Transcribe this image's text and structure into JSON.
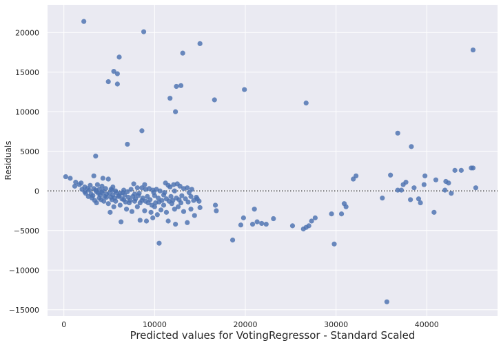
{
  "chart_data": {
    "type": "scatter",
    "title": "",
    "xlabel": "Predicted values for VotingRegressor - Standard Scaled",
    "ylabel": "Residuals",
    "xlim": [
      -1800,
      47800
    ],
    "ylim": [
      -15800,
      23500
    ],
    "x_ticks": [
      {
        "value": 0,
        "label": "0"
      },
      {
        "value": 10000,
        "label": "10000"
      },
      {
        "value": 20000,
        "label": "20000"
      },
      {
        "value": 30000,
        "label": "30000"
      },
      {
        "value": 40000,
        "label": "40000"
      }
    ],
    "y_ticks": [
      {
        "value": -15000,
        "label": "−15000"
      },
      {
        "value": -10000,
        "label": "−10000"
      },
      {
        "value": -5000,
        "label": "−5000"
      },
      {
        "value": 0,
        "label": "0"
      },
      {
        "value": 5000,
        "label": "5000"
      },
      {
        "value": 10000,
        "label": "10000"
      },
      {
        "value": 15000,
        "label": "15000"
      },
      {
        "value": 20000,
        "label": "20000"
      }
    ],
    "grid": true,
    "reference_line": {
      "y": 0,
      "style": "dotted"
    },
    "colors": {
      "background": "#eaeaf2",
      "grid": "#ffffff",
      "marker": "#4c72b0",
      "reference_line": "#444444"
    },
    "points": [
      [
        2200,
        21400
      ],
      [
        8800,
        20100
      ],
      [
        15000,
        18600
      ],
      [
        13100,
        17400
      ],
      [
        6100,
        16900
      ],
      [
        5500,
        15100
      ],
      [
        5900,
        14800
      ],
      [
        5900,
        13500
      ],
      [
        4900,
        13800
      ],
      [
        12900,
        13300
      ],
      [
        12400,
        13200
      ],
      [
        19900,
        12800
      ],
      [
        11700,
        11700
      ],
      [
        16600,
        11500
      ],
      [
        12300,
        10000
      ],
      [
        26700,
        11100
      ],
      [
        8600,
        7600
      ],
      [
        7000,
        5900
      ],
      [
        3500,
        4400
      ],
      [
        45100,
        17800
      ],
      [
        36800,
        7300
      ],
      [
        38300,
        5600
      ],
      [
        200,
        1800
      ],
      [
        700,
        1600
      ],
      [
        1300,
        1100
      ],
      [
        1700,
        800
      ],
      [
        1900,
        1000
      ],
      [
        2300,
        500
      ],
      [
        2600,
        300
      ],
      [
        2900,
        700
      ],
      [
        3300,
        1900
      ],
      [
        3300,
        300
      ],
      [
        3700,
        800
      ],
      [
        3900,
        200
      ],
      [
        4200,
        600
      ],
      [
        4300,
        1600
      ],
      [
        4600,
        300
      ],
      [
        4900,
        1500
      ],
      [
        5200,
        200
      ],
      [
        5400,
        500
      ],
      [
        5700,
        0
      ],
      [
        6200,
        -300
      ],
      [
        6600,
        100
      ],
      [
        7000,
        -100
      ],
      [
        7400,
        200
      ],
      [
        7700,
        900
      ],
      [
        8100,
        400
      ],
      [
        8600,
        400
      ],
      [
        8900,
        800
      ],
      [
        9000,
        200
      ],
      [
        9400,
        300
      ],
      [
        9800,
        100
      ],
      [
        10200,
        200
      ],
      [
        10600,
        0
      ],
      [
        11200,
        1000
      ],
      [
        11500,
        700
      ],
      [
        11700,
        500
      ],
      [
        12100,
        800
      ],
      [
        12500,
        900
      ],
      [
        12800,
        600
      ],
      [
        13200,
        300
      ],
      [
        13600,
        400
      ],
      [
        14100,
        200
      ],
      [
        2400,
        -300
      ],
      [
        2700,
        -700
      ],
      [
        3100,
        -900
      ],
      [
        3400,
        -1200
      ],
      [
        3600,
        -1500
      ],
      [
        3900,
        -900
      ],
      [
        4100,
        -1100
      ],
      [
        4400,
        -1300
      ],
      [
        4700,
        -800
      ],
      [
        4900,
        -1600
      ],
      [
        5100,
        -2700
      ],
      [
        5300,
        -1100
      ],
      [
        5500,
        -2000
      ],
      [
        5700,
        -1300
      ],
      [
        6000,
        -700
      ],
      [
        6200,
        -1800
      ],
      [
        6300,
        -3900
      ],
      [
        6600,
        -1100
      ],
      [
        6900,
        -2300
      ],
      [
        7200,
        -1500
      ],
      [
        7500,
        -2600
      ],
      [
        7800,
        -1300
      ],
      [
        8100,
        -2000
      ],
      [
        8400,
        -3700
      ],
      [
        8600,
        -1200
      ],
      [
        8900,
        -2500
      ],
      [
        9100,
        -3800
      ],
      [
        9300,
        -1500
      ],
      [
        9600,
        -2700
      ],
      [
        9800,
        -3400
      ],
      [
        10000,
        -2000
      ],
      [
        10300,
        -3000
      ],
      [
        10500,
        -1400
      ],
      [
        10700,
        -2400
      ],
      [
        11000,
        -1800
      ],
      [
        11300,
        -2700
      ],
      [
        11500,
        -3800
      ],
      [
        11900,
        -1600
      ],
      [
        12200,
        -2300
      ],
      [
        12300,
        -4200
      ],
      [
        12600,
        -2000
      ],
      [
        12900,
        -1500
      ],
      [
        13200,
        -2600
      ],
      [
        13600,
        -4000
      ],
      [
        14000,
        -2300
      ],
      [
        14400,
        -3100
      ],
      [
        14700,
        -1000
      ],
      [
        15000,
        -2100
      ],
      [
        16700,
        -1800
      ],
      [
        16800,
        -2500
      ],
      [
        10500,
        -6600
      ],
      [
        18600,
        -6200
      ],
      [
        19500,
        -4300
      ],
      [
        19800,
        -3400
      ],
      [
        20800,
        -4200
      ],
      [
        21000,
        -2300
      ],
      [
        21300,
        -3900
      ],
      [
        21800,
        -4100
      ],
      [
        22300,
        -4200
      ],
      [
        23100,
        -3500
      ],
      [
        25200,
        -4400
      ],
      [
        26400,
        -4800
      ],
      [
        26700,
        -4600
      ],
      [
        27000,
        -4400
      ],
      [
        27300,
        -3800
      ],
      [
        27700,
        -3400
      ],
      [
        29500,
        -2900
      ],
      [
        29800,
        -6700
      ],
      [
        30600,
        -2900
      ],
      [
        30900,
        -1600
      ],
      [
        31100,
        -2000
      ],
      [
        31900,
        1500
      ],
      [
        32200,
        1900
      ],
      [
        35100,
        -900
      ],
      [
        35600,
        -14000
      ],
      [
        36000,
        2000
      ],
      [
        36800,
        100
      ],
      [
        37200,
        100
      ],
      [
        37400,
        800
      ],
      [
        37700,
        1100
      ],
      [
        38200,
        -1100
      ],
      [
        38600,
        400
      ],
      [
        39100,
        -1000
      ],
      [
        39300,
        -1500
      ],
      [
        39700,
        800
      ],
      [
        39800,
        1900
      ],
      [
        40800,
        -2700
      ],
      [
        41000,
        1400
      ],
      [
        42000,
        100
      ],
      [
        42100,
        1200
      ],
      [
        42400,
        1000
      ],
      [
        42700,
        -300
      ],
      [
        43100,
        2600
      ],
      [
        43800,
        2600
      ],
      [
        44900,
        2900
      ],
      [
        45100,
        2900
      ],
      [
        45400,
        400
      ],
      [
        1200,
        600
      ],
      [
        2000,
        200
      ],
      [
        2300,
        -100
      ],
      [
        2800,
        100
      ],
      [
        3000,
        -400
      ],
      [
        3200,
        -600
      ],
      [
        3500,
        100
      ],
      [
        3800,
        -300
      ],
      [
        4000,
        -500
      ],
      [
        4200,
        -200
      ],
      [
        4500,
        -700
      ],
      [
        4700,
        -400
      ],
      [
        5000,
        -300
      ],
      [
        5200,
        -800
      ],
      [
        5400,
        -500
      ],
      [
        5600,
        -900
      ],
      [
        5800,
        -200
      ],
      [
        6100,
        -600
      ],
      [
        6400,
        -1000
      ],
      [
        6700,
        -500
      ],
      [
        6800,
        -1400
      ],
      [
        7100,
        -800
      ],
      [
        7300,
        -1200
      ],
      [
        7600,
        -700
      ],
      [
        7900,
        -1000
      ],
      [
        8200,
        -600
      ],
      [
        8400,
        -1500
      ],
      [
        8700,
        -900
      ],
      [
        9000,
        -1300
      ],
      [
        9200,
        -700
      ],
      [
        9500,
        -1100
      ],
      [
        9700,
        -1800
      ],
      [
        10000,
        -600
      ],
      [
        10100,
        -1500
      ],
      [
        10400,
        -900
      ],
      [
        10800,
        -1200
      ],
      [
        11000,
        -500
      ],
      [
        11300,
        -1000
      ],
      [
        11600,
        -1300
      ],
      [
        11800,
        -700
      ],
      [
        12000,
        -1200
      ],
      [
        12400,
        -900
      ],
      [
        12700,
        -1100
      ],
      [
        13000,
        -600
      ],
      [
        13400,
        -1000
      ],
      [
        13700,
        -1400
      ],
      [
        14000,
        -700
      ],
      [
        14300,
        -1200
      ],
      [
        14600,
        -800
      ],
      [
        14900,
        -1300
      ],
      [
        4300,
        0
      ],
      [
        6500,
        -200
      ],
      [
        8300,
        -300
      ],
      [
        9900,
        -200
      ],
      [
        11100,
        -200
      ],
      [
        13800,
        -200
      ],
      [
        12200,
        0
      ],
      [
        7800,
        -400
      ],
      [
        5300,
        100
      ],
      [
        3600,
        -100
      ]
    ]
  }
}
